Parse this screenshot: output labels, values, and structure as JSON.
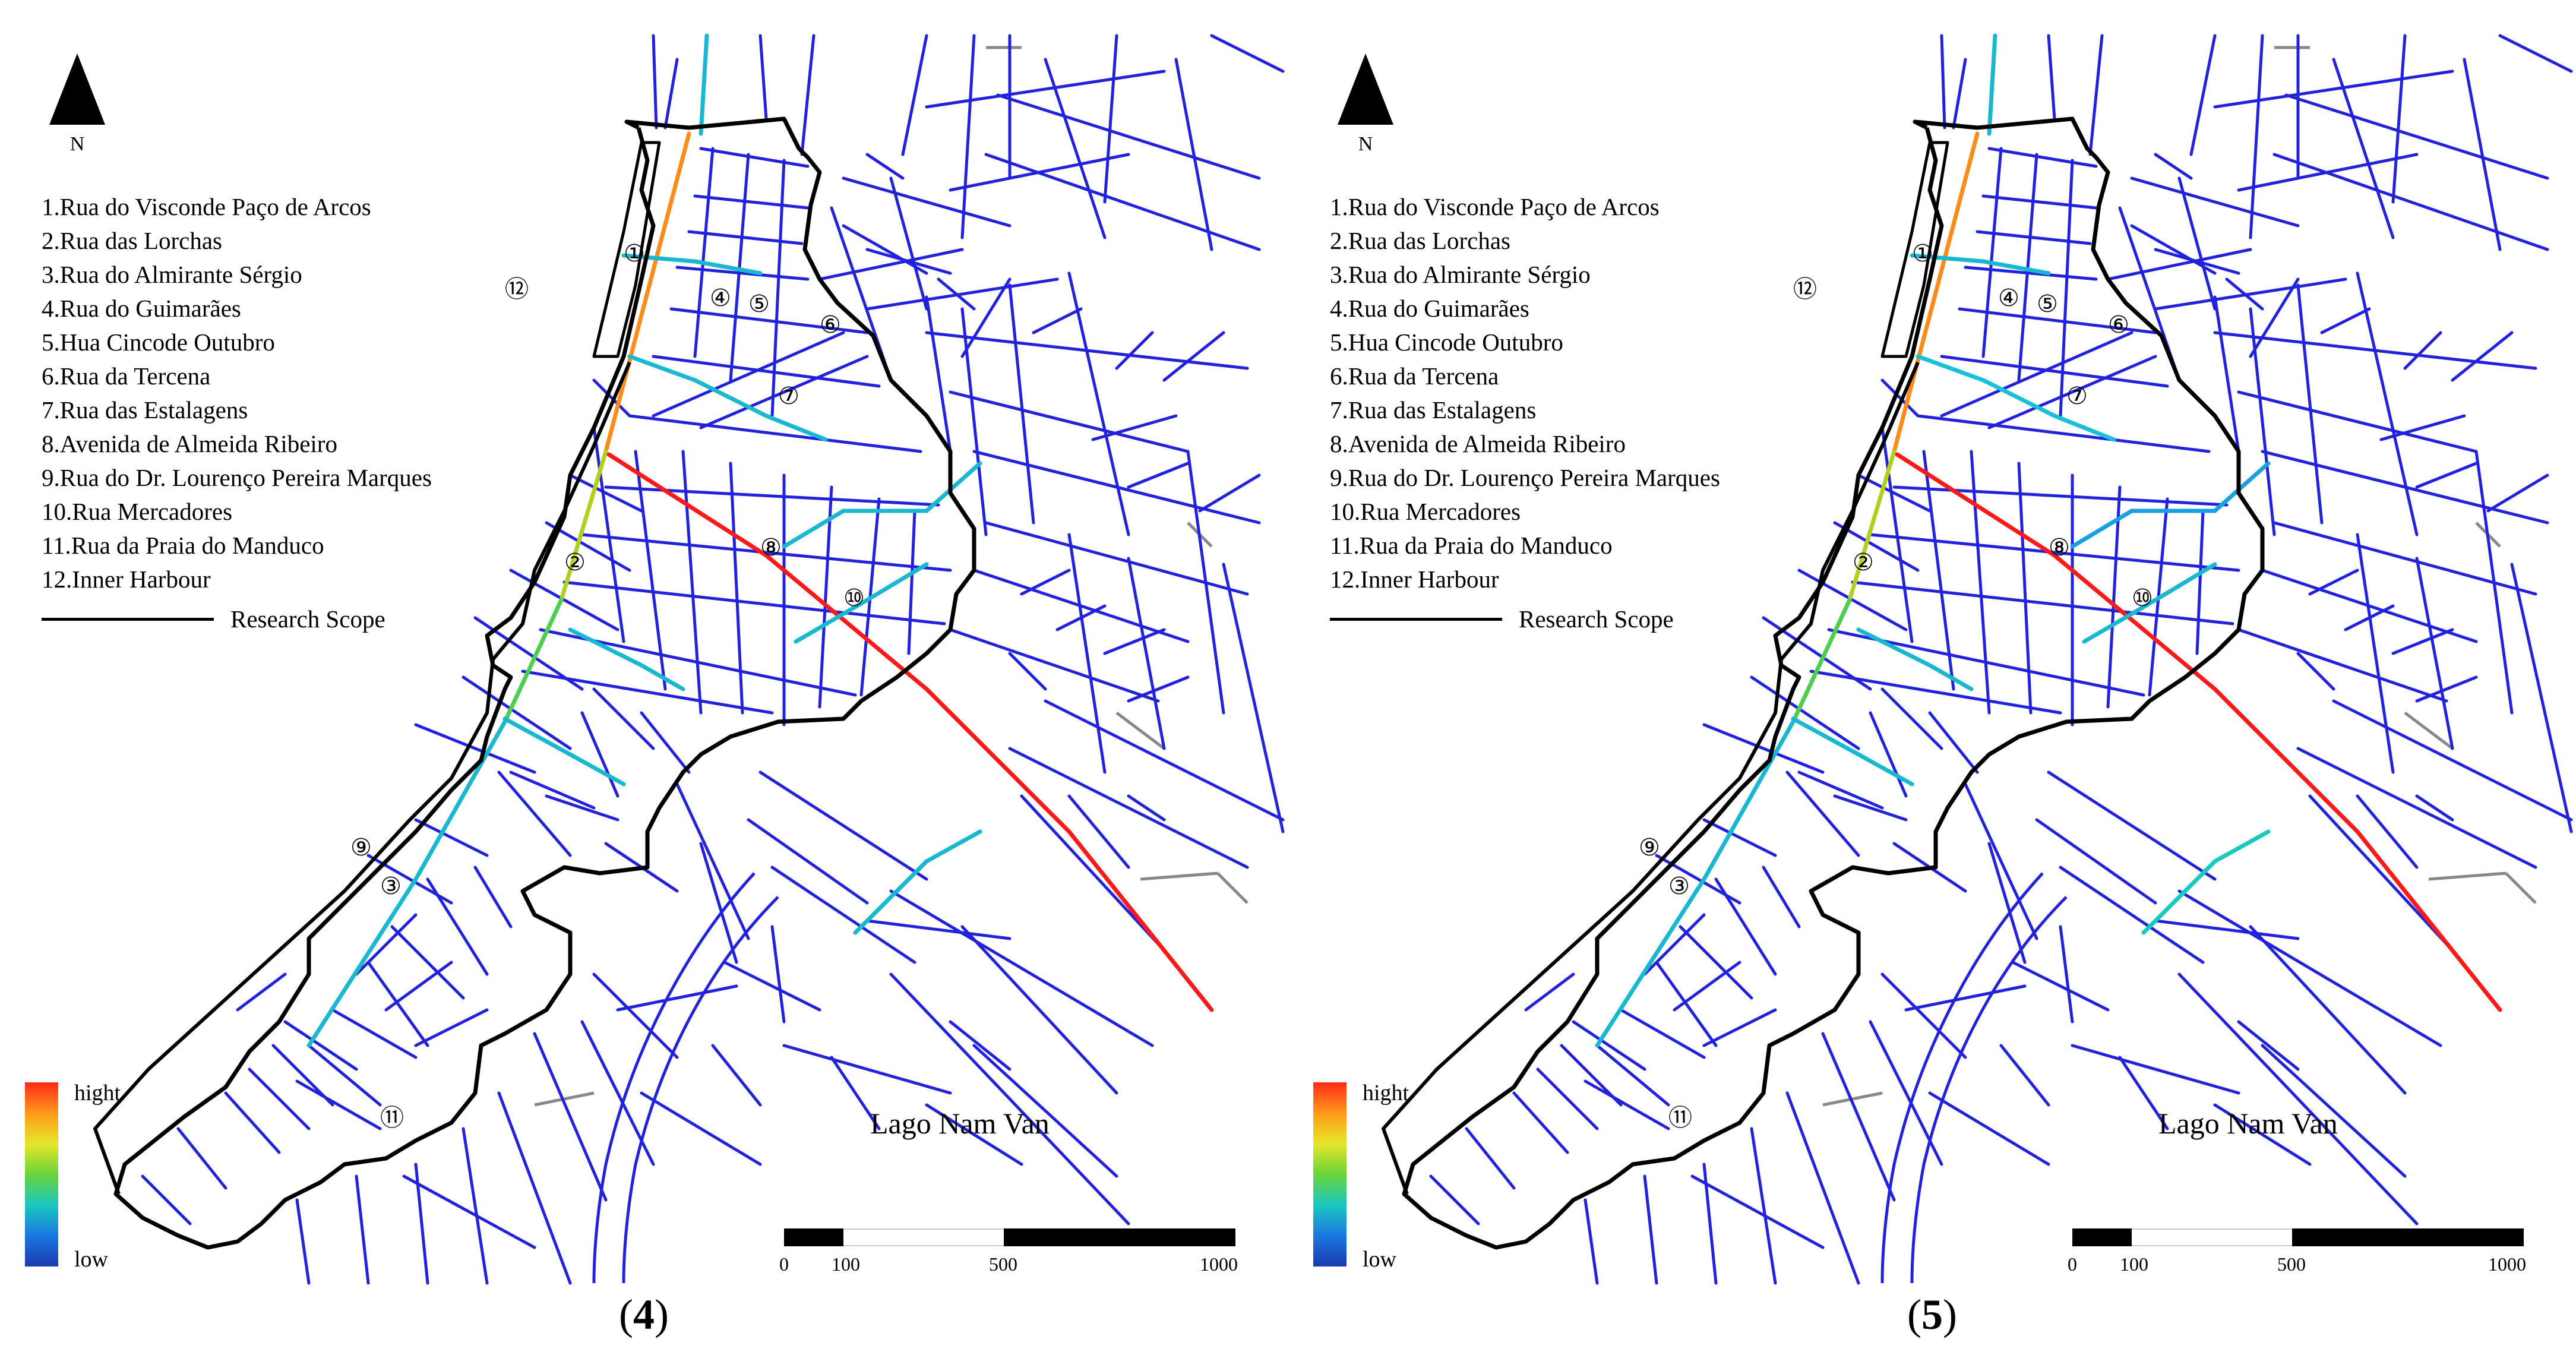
{
  "north_label": "N",
  "legend_items": [
    "1.Rua do Visconde Paço de Arcos",
    "2.Rua das Lorchas",
    "3.Rua do Almirante Sérgio",
    "4.Rua do Guimarães",
    "5.Hua Cincode Outubro",
    "6.Rua da Tercena",
    "7.Rua das Estalagens",
    "8.Avenida de Almeida Ribeiro",
    "9.Rua do Dr. Lourenço Pereira Marques",
    "10.Rua Mercadores",
    "11.Rua da Praia do Manduco",
    "12.Inner Harbour"
  ],
  "scope_label": "Research Scope",
  "ramp": {
    "high": "hight",
    "low": "low",
    "colors": [
      "#ff2a1a",
      "#ff9a1a",
      "#e6e62a",
      "#6ad43a",
      "#1ac8c0",
      "#1a78e0",
      "#1a3ab0"
    ]
  },
  "place_label": "Lago Nam Van",
  "scale_ticks": [
    "0",
    "100",
    "500",
    "1000"
  ],
  "street_markers": [
    "①",
    "②",
    "③",
    "④",
    "⑤",
    "⑥",
    "⑦",
    "⑧",
    "⑨",
    "⑩",
    "⑪",
    "⑫"
  ],
  "colors": {
    "street": "#2222dd",
    "minor_street": "#888888",
    "boundary": "#000000"
  },
  "panels": [
    {
      "caption_open": "(",
      "caption_num": "4",
      "caption_close": ")"
    },
    {
      "caption_open": "(",
      "caption_num": "5",
      "caption_close": ")"
    }
  ]
}
